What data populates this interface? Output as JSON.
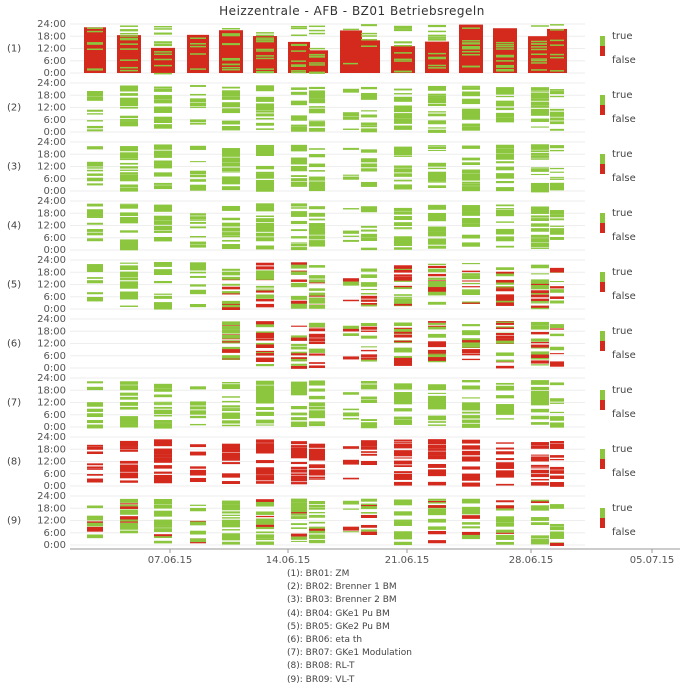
{
  "chart_data": {
    "type": "heatmap",
    "title": "Heizzentrale - AFB - BZ01 Betriebsregeln",
    "x_ticks": [
      "07.06.15",
      "14.06.15",
      "21.06.15",
      "28.06.15",
      "05.07.15"
    ],
    "y_ticks": [
      "24:00",
      "18:00",
      "12:00",
      "6:00",
      "0:00"
    ],
    "legend": {
      "true_label": "true",
      "false_label": "false",
      "true_color": "#8cc63f",
      "false_color": "#d42a1e"
    },
    "rows": [
      {
        "index": "(1)",
        "code": "BR01",
        "name": "ZM",
        "mode": "mostly-false"
      },
      {
        "index": "(2)",
        "code": "BR02",
        "name": "Brenner 1 BM",
        "mode": "true"
      },
      {
        "index": "(3)",
        "code": "BR03",
        "name": "Brenner 2 BM",
        "mode": "true"
      },
      {
        "index": "(4)",
        "code": "BR04",
        "name": "GKe1 Pu BM",
        "mode": "true"
      },
      {
        "index": "(5)",
        "code": "BR05",
        "name": "GKe2 Pu BM",
        "mode": "true-late-false"
      },
      {
        "index": "(6)",
        "code": "BR06",
        "name": "eta th",
        "mode": "mixed-late"
      },
      {
        "index": "(7)",
        "code": "BR07",
        "name": "GKe1 Modulation",
        "mode": "true"
      },
      {
        "index": "(8)",
        "code": "BR08",
        "name": "RL-T",
        "mode": "false"
      },
      {
        "index": "(9)",
        "code": "BR09",
        "name": "VL-T",
        "mode": "true-some-false"
      }
    ],
    "legend_entries": [
      "(1): BR01: ZM",
      "(2): BR02: Brenner 1 BM",
      "(3): BR03: Brenner 2 BM",
      "(4): BR04: GKe1 Pu BM",
      "(5): BR05: GKe2 Pu BM",
      "(6): BR06: eta th",
      "(7): BR07: GKe1 Modulation",
      "(8): BR08: RL-T",
      "(9): BR09: VL-T"
    ]
  }
}
